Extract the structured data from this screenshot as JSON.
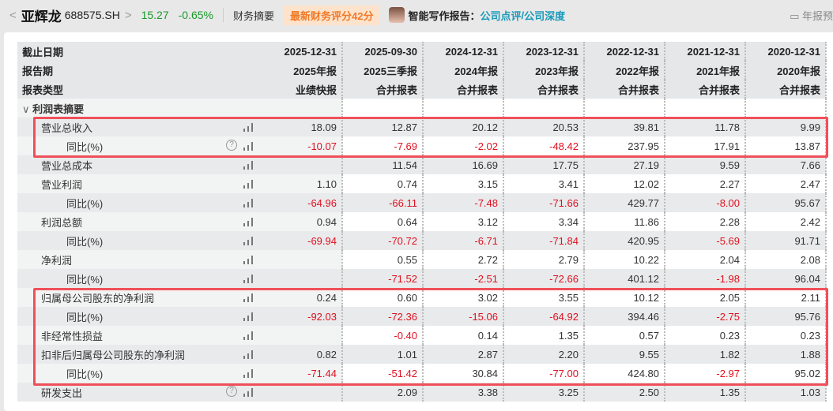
{
  "header": {
    "back": "<",
    "name": "亚辉龙",
    "code": "688575.SH",
    "forward": ">",
    "price": "15.27",
    "change": "-0.65%",
    "tab": "财务摘要",
    "rating": "最新财务评分42分",
    "ai_label": "智能写作报告：",
    "link1": "公司点评",
    "slash": " / ",
    "link2": "公司深度",
    "right_label": "年报预"
  },
  "colors": {
    "price": "#1a9a2a",
    "negative": "#e01020",
    "link": "#1a9ab8",
    "highlight": "#f0505a"
  },
  "table": {
    "header_rows": [
      {
        "label": "截止日期",
        "values": [
          "2025-12-31",
          "2025-09-30",
          "2024-12-31",
          "2023-12-31",
          "2022-12-31",
          "2021-12-31",
          "2020-12-31"
        ]
      },
      {
        "label": "报告期",
        "values": [
          "2025年报",
          "2025三季报",
          "2024年报",
          "2023年报",
          "2022年报",
          "2021年报",
          "2020年报"
        ]
      },
      {
        "label": "报表类型",
        "values": [
          "业绩快报",
          "合并报表",
          "合并报表",
          "合并报表",
          "合并报表",
          "合并报表",
          "合并报表"
        ]
      }
    ],
    "section": "利润表摘要",
    "rows": [
      {
        "label": "营业总收入",
        "level": 1,
        "values": [
          "18.09",
          "12.87",
          "20.12",
          "20.53",
          "39.81",
          "11.78",
          "9.99"
        ]
      },
      {
        "label": "同比(%)",
        "level": 2,
        "help": true,
        "values": [
          "-10.07",
          "-7.69",
          "-2.02",
          "-48.42",
          "237.95",
          "17.91",
          "13.87"
        ]
      },
      {
        "label": "营业总成本",
        "level": 1,
        "values": [
          "",
          "11.54",
          "16.69",
          "17.75",
          "27.19",
          "9.59",
          "7.66"
        ]
      },
      {
        "label": "营业利润",
        "level": 1,
        "values": [
          "1.10",
          "0.74",
          "3.15",
          "3.41",
          "12.02",
          "2.27",
          "2.47"
        ]
      },
      {
        "label": "同比(%)",
        "level": 2,
        "values": [
          "-64.96",
          "-66.11",
          "-7.48",
          "-71.66",
          "429.77",
          "-8.00",
          "95.67"
        ]
      },
      {
        "label": "利润总额",
        "level": 1,
        "values": [
          "0.94",
          "0.64",
          "3.12",
          "3.34",
          "11.86",
          "2.28",
          "2.42"
        ]
      },
      {
        "label": "同比(%)",
        "level": 2,
        "values": [
          "-69.94",
          "-70.72",
          "-6.71",
          "-71.84",
          "420.95",
          "-5.69",
          "91.71"
        ]
      },
      {
        "label": "净利润",
        "level": 1,
        "values": [
          "",
          "0.55",
          "2.72",
          "2.79",
          "10.22",
          "2.04",
          "2.08"
        ]
      },
      {
        "label": "同比(%)",
        "level": 2,
        "values": [
          "",
          "-71.52",
          "-2.51",
          "-72.66",
          "401.12",
          "-1.98",
          "96.04"
        ]
      },
      {
        "label": "归属母公司股东的净利润",
        "level": 1,
        "values": [
          "0.24",
          "0.60",
          "3.02",
          "3.55",
          "10.12",
          "2.05",
          "2.11"
        ]
      },
      {
        "label": "同比(%)",
        "level": 2,
        "values": [
          "-92.03",
          "-72.36",
          "-15.06",
          "-64.92",
          "394.46",
          "-2.75",
          "95.76"
        ]
      },
      {
        "label": "非经常性损益",
        "level": 1,
        "values": [
          "",
          "-0.40",
          "0.14",
          "1.35",
          "0.57",
          "0.23",
          "0.23"
        ]
      },
      {
        "label": "扣非后归属母公司股东的净利润",
        "level": 1,
        "values": [
          "0.82",
          "1.01",
          "2.87",
          "2.20",
          "9.55",
          "1.82",
          "1.88"
        ]
      },
      {
        "label": "同比(%)",
        "level": 2,
        "values": [
          "-71.44",
          "-51.42",
          "30.84",
          "-77.00",
          "424.80",
          "-2.97",
          "95.02"
        ]
      },
      {
        "label": "研发支出",
        "level": 1,
        "help": true,
        "values": [
          "",
          "2.09",
          "3.38",
          "3.25",
          "2.50",
          "1.35",
          "1.03"
        ]
      }
    ]
  }
}
